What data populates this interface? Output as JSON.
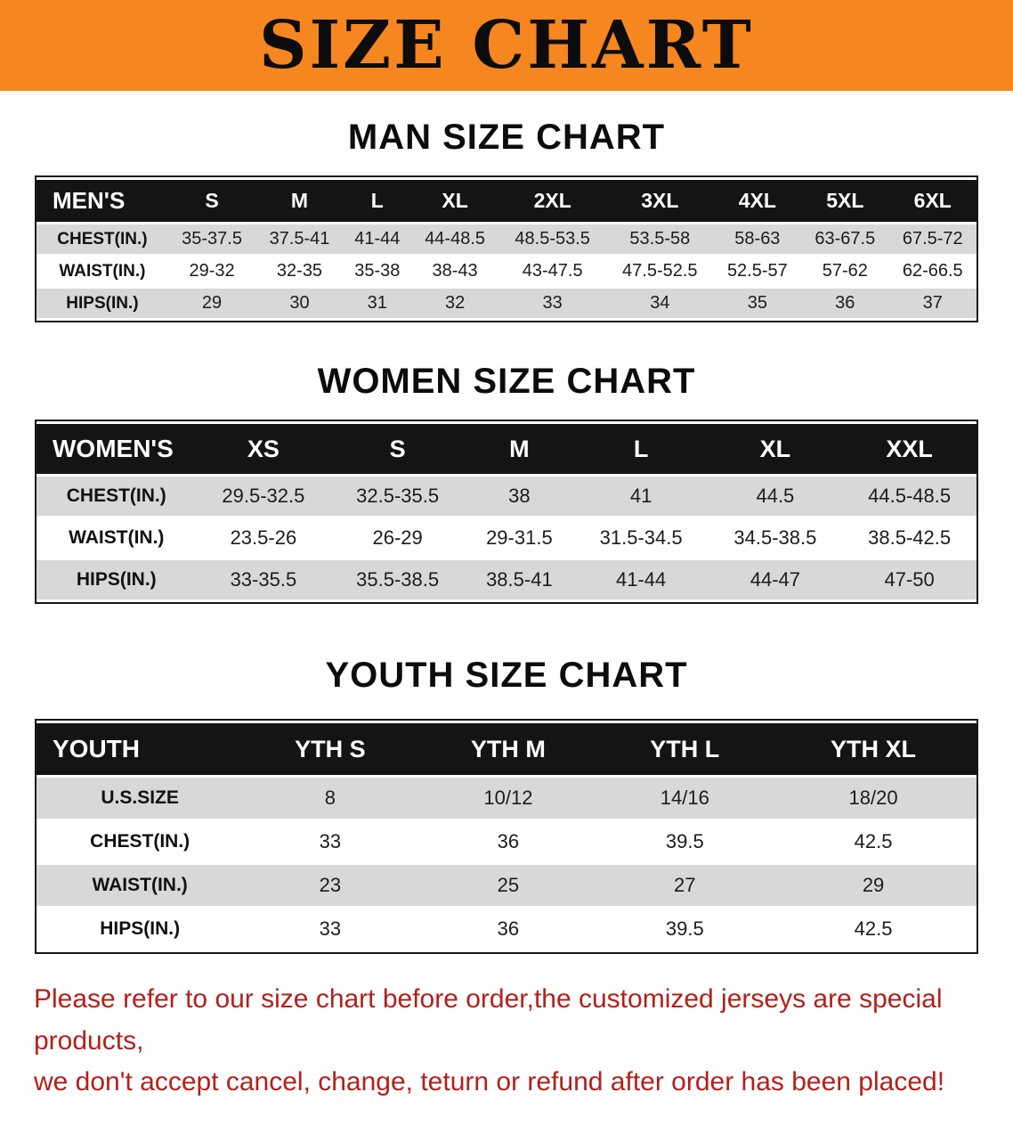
{
  "colors": {
    "banner-orange": "#f6861f",
    "header-black": "#141414",
    "row-gray": "#d8d8d8",
    "note-red": "#b3201b"
  },
  "banner": {
    "title": "SIZE CHART"
  },
  "tables": [
    {
      "id": "men",
      "heading": "MAN SIZE CHART",
      "header": [
        "MEN'S",
        "S",
        "M",
        "L",
        "XL",
        "2XL",
        "3XL",
        "4XL",
        "5XL",
        "6XL"
      ],
      "rows": [
        [
          "CHEST(IN.)",
          "35-37.5",
          "37.5-41",
          "41-44",
          "44-48.5",
          "48.5-53.5",
          "53.5-58",
          "58-63",
          "63-67.5",
          "67.5-72"
        ],
        [
          "WAIST(IN.)",
          "29-32",
          "32-35",
          "35-38",
          "38-43",
          "43-47.5",
          "47.5-52.5",
          "52.5-57",
          "57-62",
          "62-66.5"
        ],
        [
          "HIPS(IN.)",
          "29",
          "30",
          "31",
          "32",
          "33",
          "34",
          "35",
          "36",
          "37"
        ]
      ]
    },
    {
      "id": "women",
      "heading": "WOMEN SIZE CHART",
      "header": [
        "WOMEN'S",
        "XS",
        "S",
        "M",
        "L",
        "XL",
        "XXL"
      ],
      "rows": [
        [
          "CHEST(IN.)",
          "29.5-32.5",
          "32.5-35.5",
          "38",
          "41",
          "44.5",
          "44.5-48.5"
        ],
        [
          "WAIST(IN.)",
          "23.5-26",
          "26-29",
          "29-31.5",
          "31.5-34.5",
          "34.5-38.5",
          "38.5-42.5"
        ],
        [
          "HIPS(IN.)",
          "33-35.5",
          "35.5-38.5",
          "38.5-41",
          "41-44",
          "44-47",
          "47-50"
        ]
      ]
    },
    {
      "id": "youth",
      "heading": "YOUTH SIZE CHART",
      "header": [
        "YOUTH",
        "YTH S",
        "YTH M",
        "YTH L",
        "YTH XL"
      ],
      "rows": [
        [
          "U.S.SIZE",
          "8",
          "10/12",
          "14/16",
          "18/20"
        ],
        [
          "CHEST(IN.)",
          "33",
          "36",
          "39.5",
          "42.5"
        ],
        [
          "WAIST(IN.)",
          "23",
          "25",
          "27",
          "29"
        ],
        [
          "HIPS(IN.)",
          "33",
          "36",
          "39.5",
          "42.5"
        ]
      ]
    }
  ],
  "footer": {
    "line1": "Please refer to our size chart before order,the customized jerseys are special products,",
    "line2": "we don't accept cancel, change, teturn or refund after order has been placed!"
  }
}
